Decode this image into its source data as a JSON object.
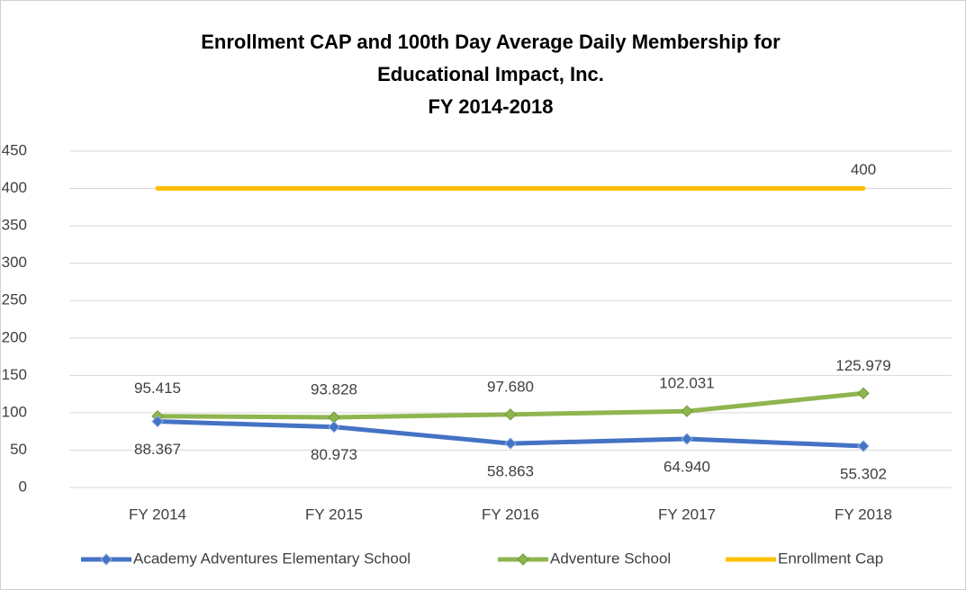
{
  "chart_data": {
    "type": "line",
    "title": [
      "Enrollment CAP and 100th Day Average Daily Membership for",
      "Educational Impact, Inc.",
      "FY 2014-2018"
    ],
    "categories": [
      "FY 2014",
      "FY 2015",
      "FY 2016",
      "FY 2017",
      "FY 2018"
    ],
    "series": [
      {
        "name": "Academy Adventures Elementary School",
        "color": "#4472c4",
        "marker": "diamond",
        "label_position": "below",
        "values": [
          88.367,
          80.973,
          58.863,
          64.94,
          55.302
        ],
        "value_labels": [
          "88.367",
          "80.973",
          "58.863",
          "64.940",
          "55.302"
        ]
      },
      {
        "name": "Adventure School",
        "color": "#8fb54f",
        "marker": "diamond",
        "label_position": "above",
        "values": [
          95.415,
          93.828,
          97.68,
          102.031,
          125.979
        ],
        "value_labels": [
          "95.415",
          "93.828",
          "97.680",
          "102.031",
          "125.979"
        ]
      },
      {
        "name": "Enrollment Cap",
        "color": "#ffc000",
        "marker": "none",
        "label_position": "above",
        "values": [
          400,
          400,
          400,
          400,
          400
        ],
        "value_labels": [
          null,
          null,
          null,
          null,
          "400"
        ]
      }
    ],
    "ylim": [
      0,
      450
    ],
    "yticks": [
      0,
      50,
      100,
      150,
      200,
      250,
      300,
      350,
      400,
      450
    ],
    "grid": true,
    "legend": "bottom"
  }
}
